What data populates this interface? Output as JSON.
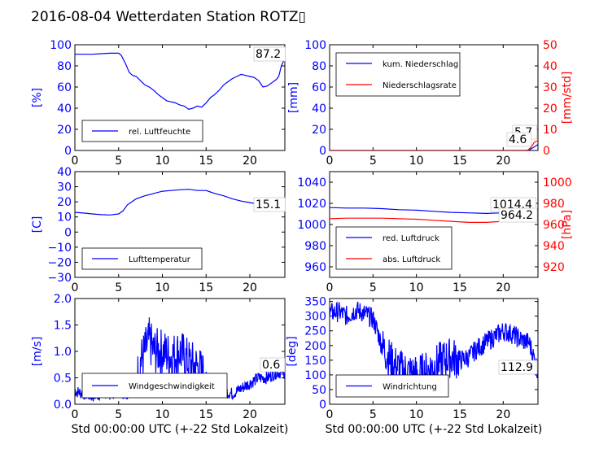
{
  "title": "2016-08-04 Wetterdaten Station ROTZ▯",
  "colors": {
    "blue": "#0000ff",
    "red": "#ff0000",
    "black": "#000000"
  },
  "chart_data": [
    {
      "type": "line",
      "ylabel": "[%]",
      "xlim": [
        0,
        24
      ],
      "ylim": [
        0,
        100
      ],
      "xticks": [
        "0",
        "5",
        "10",
        "15",
        "20"
      ],
      "yticks": [
        "0",
        "20",
        "40",
        "60",
        "80",
        "100"
      ],
      "legend": [
        "rel. Luftfeuchte"
      ],
      "legend_position": "lower-left",
      "annotation": "87.2",
      "series": [
        {
          "name": "rel. Luftfeuchte",
          "x": [
            0,
            1,
            2,
            3,
            4,
            5,
            5.3,
            5.8,
            6.2,
            6.6,
            7,
            7.5,
            8,
            8.5,
            9,
            9.5,
            10,
            10.5,
            11,
            11.5,
            12,
            12.5,
            13,
            13.5,
            14,
            14.5,
            15,
            15.5,
            16,
            16.5,
            17,
            17.5,
            18,
            18.5,
            19,
            19.5,
            20,
            20.5,
            21,
            21.5,
            22,
            22.5,
            23,
            23.3,
            23.6,
            24
          ],
          "y": [
            91,
            91,
            91,
            91.5,
            92,
            92,
            90,
            82,
            74,
            71,
            70,
            66,
            62,
            60,
            57,
            53,
            50,
            47,
            46,
            45,
            43,
            42,
            39,
            40,
            42,
            41,
            45,
            50,
            53,
            57,
            62,
            65,
            68,
            70,
            72,
            71,
            70,
            69,
            66,
            60,
            61,
            64,
            67,
            70,
            80,
            87.2
          ]
        }
      ]
    },
    {
      "type": "line",
      "ylabel": "[mm]",
      "ylabel_right": "[mm/std]",
      "xlim": [
        0,
        24
      ],
      "ylim": [
        0,
        100
      ],
      "ylim_right": [
        0,
        50
      ],
      "xticks": [
        "0",
        "5",
        "10",
        "15",
        "20"
      ],
      "yticks": [
        "0",
        "20",
        "40",
        "60",
        "80",
        "100"
      ],
      "yticks_right": [
        "0",
        "10",
        "20",
        "30",
        "40",
        "50"
      ],
      "legend": [
        "kum. Niederschlag",
        "Niederschlagsrate"
      ],
      "legend_position": "upper-left",
      "annotations": [
        "5.7",
        "4.6"
      ],
      "series": [
        {
          "name": "kum. Niederschlag",
          "axis": "left",
          "x": [
            0,
            20,
            22.5,
            23,
            23.5,
            24
          ],
          "y": [
            0,
            0,
            0,
            0.5,
            3,
            5.7
          ]
        },
        {
          "name": "Niederschlagsrate",
          "axis": "right",
          "x": [
            0,
            20,
            22.8,
            23.2,
            23.6,
            24
          ],
          "y": [
            0,
            0,
            0,
            1.5,
            4,
            4.6
          ]
        }
      ]
    },
    {
      "type": "line",
      "ylabel": "[C]",
      "xlim": [
        0,
        24
      ],
      "ylim": [
        -30,
        40
      ],
      "xticks": [
        "0",
        "5",
        "10",
        "15",
        "20"
      ],
      "yticks": [
        "−30",
        "−20",
        "−10",
        "0",
        "10",
        "20",
        "30",
        "40"
      ],
      "legend": [
        "Lufttemperatur"
      ],
      "legend_position": "lower-left",
      "annotation": "15.1",
      "series": [
        {
          "name": "Lufttemperatur",
          "x": [
            0,
            1,
            2,
            3,
            4,
            5,
            5.5,
            6,
            6.5,
            7,
            8,
            9,
            10,
            11,
            12,
            13,
            14,
            15,
            16,
            17,
            18,
            19,
            20,
            21,
            22,
            23,
            24
          ],
          "y": [
            13,
            12.6,
            12,
            11.5,
            11.3,
            12,
            14,
            18,
            20,
            22,
            24,
            25.5,
            27,
            27.5,
            28,
            28.3,
            27.5,
            27.5,
            25.5,
            24,
            22,
            20.5,
            19.5,
            18.5,
            17.5,
            16.5,
            15.1
          ]
        }
      ]
    },
    {
      "type": "line",
      "ylabel_right": "[hPa]",
      "xlim": [
        0,
        24
      ],
      "ylim": [
        950,
        1050
      ],
      "ylim_right": [
        910,
        1010
      ],
      "xticks": [
        "0",
        "5",
        "10",
        "15",
        "20"
      ],
      "yticks": [
        "960",
        "980",
        "1000",
        "1020",
        "1040"
      ],
      "yticks_right": [
        "920",
        "940",
        "960",
        "980",
        "1000"
      ],
      "legend": [
        "red. Luftdruck",
        "abs. Luftdruck"
      ],
      "legend_position": "lower-left",
      "annotations": [
        "1014.4",
        "964.2"
      ],
      "series": [
        {
          "name": "red. Luftdruck",
          "axis": "left",
          "x": [
            0,
            2,
            4,
            6,
            8,
            10,
            12,
            14,
            16,
            18,
            20,
            22,
            24
          ],
          "y": [
            1016,
            1015.5,
            1015.5,
            1015,
            1014,
            1013.5,
            1012.5,
            1011.5,
            1011,
            1010.5,
            1011,
            1012,
            1014.4
          ]
        },
        {
          "name": "abs. Luftdruck",
          "axis": "right",
          "x": [
            0,
            2,
            4,
            6,
            8,
            10,
            12,
            14,
            16,
            18,
            20,
            22,
            24
          ],
          "y": [
            965.5,
            966,
            966,
            966,
            965.5,
            965,
            964,
            963,
            962,
            962,
            963,
            963.5,
            964.2
          ]
        }
      ]
    },
    {
      "type": "line",
      "ylabel": "[m/s]",
      "xlabel": "Std 00:00:00 UTC (+-22 Std Lokalzeit)",
      "xlim": [
        0,
        24
      ],
      "ylim": [
        0,
        2
      ],
      "xticks": [
        "0",
        "5",
        "10",
        "15",
        "20"
      ],
      "yticks": [
        "0.0",
        "0.5",
        "1.0",
        "1.5",
        "2.0"
      ],
      "legend": [
        "Windgeschwindigkeit"
      ],
      "legend_position": "lower-center",
      "annotation": "0.6",
      "series": [
        {
          "name": "Windgeschwindigkeit",
          "x": [
            0,
            1,
            2,
            3,
            4,
            5,
            6,
            7,
            7.5,
            8,
            8.5,
            9,
            10,
            11,
            12,
            13,
            14,
            15,
            16,
            17,
            18,
            19,
            20,
            21,
            22,
            23,
            24
          ],
          "y": [
            0.25,
            0.2,
            0.15,
            0.2,
            0.2,
            0.25,
            0.2,
            0.4,
            0.8,
            1.0,
            1.2,
            1.0,
            1.0,
            0.9,
            1.0,
            0.8,
            0.7,
            0.5,
            0.4,
            0.25,
            0.2,
            0.3,
            0.4,
            0.5,
            0.5,
            0.6,
            0.6
          ]
        }
      ]
    },
    {
      "type": "line",
      "ylabel": "[deg]",
      "xlabel": "Std 00:00:00 UTC (+-22 Std Lokalzeit)",
      "xlim": [
        0,
        24
      ],
      "ylim": [
        0,
        360
      ],
      "xticks": [
        "0",
        "5",
        "10",
        "15",
        "20"
      ],
      "yticks": [
        "0",
        "50",
        "100",
        "150",
        "200",
        "250",
        "300",
        "350"
      ],
      "legend": [
        "Windrichtung"
      ],
      "legend_position": "lower-left",
      "annotation": "112.9",
      "series": [
        {
          "name": "Windrichtung",
          "x": [
            0,
            1,
            2,
            3,
            4,
            5,
            5.5,
            6,
            7,
            8,
            9,
            10,
            11,
            12,
            13,
            14,
            15,
            16,
            17,
            18,
            19,
            20,
            21,
            22,
            23,
            23.5,
            24
          ],
          "y": [
            310,
            315,
            300,
            320,
            310,
            290,
            250,
            200,
            150,
            120,
            110,
            100,
            110,
            130,
            150,
            160,
            150,
            160,
            190,
            210,
            230,
            250,
            240,
            220,
            210,
            160,
            112.9
          ]
        }
      ]
    }
  ]
}
